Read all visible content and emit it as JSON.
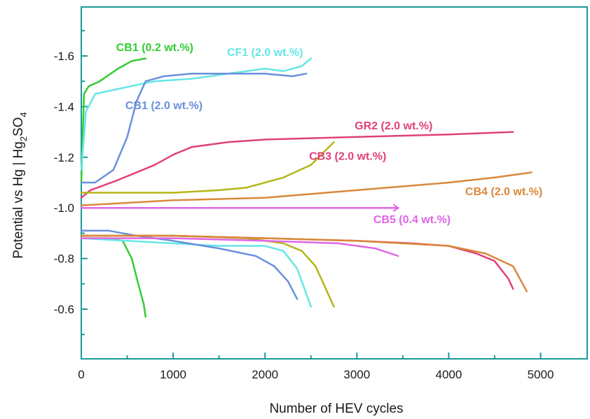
{
  "chart_data": {
    "type": "line",
    "xlabel": "Number of HEV cycles",
    "ylabel": "Potential vs Hg | Hg₂SO₄",
    "ylabel_parts": {
      "main": "Potential vs Hg | Hg",
      "sub1": "2",
      "mid": "SO",
      "sub2": "4"
    },
    "xlim": [
      0,
      5500
    ],
    "ylim": [
      -0.4,
      -1.8
    ],
    "x_ticks": [
      0,
      1000,
      2000,
      3000,
      4000,
      5000
    ],
    "x_tick_labels": [
      "0",
      "1000",
      "2000",
      "3000",
      "4000",
      "5000"
    ],
    "y_ticks": [
      -0.6,
      -0.8,
      -1.0,
      -1.2,
      -1.4,
      -1.6
    ],
    "y_tick_labels": [
      "-0.6",
      "-0.8",
      "-1.0",
      "-1.2",
      "-1.4",
      "-1.6"
    ],
    "axis_color": "#1a9a9a",
    "grid": false,
    "series": [
      {
        "name": "CB1 (0.2 wt.%)",
        "color": "#33cc33",
        "upper": [
          [
            0,
            1.1
          ],
          [
            30,
            1.45
          ],
          [
            80,
            1.48
          ],
          [
            200,
            1.5
          ],
          [
            400,
            1.55
          ],
          [
            550,
            1.58
          ],
          [
            700,
            1.59
          ]
        ],
        "lower": [
          [
            0,
            0.88
          ],
          [
            300,
            0.88
          ],
          [
            450,
            0.87
          ],
          [
            550,
            0.8
          ],
          [
            620,
            0.7
          ],
          [
            680,
            0.62
          ],
          [
            700,
            0.57
          ]
        ]
      },
      {
        "name": "CF1 (2.0 wt.%)",
        "color": "#66e6e6",
        "upper": [
          [
            0,
            1.15
          ],
          [
            50,
            1.38
          ],
          [
            150,
            1.45
          ],
          [
            400,
            1.47
          ],
          [
            800,
            1.5
          ],
          [
            1200,
            1.51
          ],
          [
            1600,
            1.53
          ],
          [
            2000,
            1.55
          ],
          [
            2200,
            1.54
          ],
          [
            2400,
            1.56
          ],
          [
            2500,
            1.59
          ]
        ],
        "lower": [
          [
            0,
            0.88
          ],
          [
            500,
            0.87
          ],
          [
            1000,
            0.86
          ],
          [
            1500,
            0.85
          ],
          [
            2000,
            0.85
          ],
          [
            2200,
            0.83
          ],
          [
            2350,
            0.76
          ],
          [
            2450,
            0.66
          ],
          [
            2500,
            0.61
          ]
        ]
      },
      {
        "name": "CB1 (2.0 wt.%)",
        "color": "#6a90dd",
        "upper": [
          [
            0,
            1.1
          ],
          [
            150,
            1.1
          ],
          [
            350,
            1.15
          ],
          [
            500,
            1.28
          ],
          [
            600,
            1.42
          ],
          [
            700,
            1.5
          ],
          [
            900,
            1.52
          ],
          [
            1200,
            1.53
          ],
          [
            1600,
            1.53
          ],
          [
            2000,
            1.53
          ],
          [
            2300,
            1.52
          ],
          [
            2450,
            1.53
          ]
        ],
        "lower": [
          [
            0,
            0.91
          ],
          [
            300,
            0.91
          ],
          [
            600,
            0.89
          ],
          [
            1000,
            0.87
          ],
          [
            1500,
            0.84
          ],
          [
            1900,
            0.81
          ],
          [
            2100,
            0.77
          ],
          [
            2250,
            0.71
          ],
          [
            2350,
            0.64
          ]
        ]
      },
      {
        "name": "GR2 (2.0 wt.%)",
        "color": "#e0407a",
        "upper": [
          [
            0,
            1.04
          ],
          [
            100,
            1.07
          ],
          [
            400,
            1.11
          ],
          [
            800,
            1.17
          ],
          [
            1000,
            1.21
          ],
          [
            1200,
            1.24
          ],
          [
            1600,
            1.26
          ],
          [
            2000,
            1.27
          ],
          [
            3000,
            1.28
          ],
          [
            4000,
            1.29
          ],
          [
            4700,
            1.3
          ]
        ],
        "lower": [
          [
            0,
            0.89
          ],
          [
            1000,
            0.89
          ],
          [
            2000,
            0.88
          ],
          [
            3000,
            0.87
          ],
          [
            3600,
            0.86
          ],
          [
            4000,
            0.85
          ],
          [
            4300,
            0.82
          ],
          [
            4500,
            0.79
          ],
          [
            4650,
            0.72
          ],
          [
            4700,
            0.68
          ]
        ]
      },
      {
        "name": "CB3 (2.0 wt.%)",
        "color": "#b5b51a",
        "upper": [
          [
            0,
            1.06
          ],
          [
            500,
            1.06
          ],
          [
            1000,
            1.06
          ],
          [
            1500,
            1.07
          ],
          [
            1800,
            1.08
          ],
          [
            2200,
            1.12
          ],
          [
            2500,
            1.17
          ],
          [
            2750,
            1.26
          ]
        ],
        "lower": [
          [
            0,
            0.89
          ],
          [
            1000,
            0.89
          ],
          [
            1800,
            0.88
          ],
          [
            2200,
            0.86
          ],
          [
            2400,
            0.83
          ],
          [
            2550,
            0.77
          ],
          [
            2650,
            0.69
          ],
          [
            2750,
            0.61
          ]
        ]
      },
      {
        "name": "CB4 (2.0 wt.%)",
        "color": "#d9883a",
        "upper": [
          [
            0,
            1.01
          ],
          [
            500,
            1.02
          ],
          [
            1000,
            1.03
          ],
          [
            2000,
            1.04
          ],
          [
            3000,
            1.07
          ],
          [
            4000,
            1.1
          ],
          [
            4500,
            1.12
          ],
          [
            4900,
            1.14
          ]
        ],
        "lower": [
          [
            0,
            0.89
          ],
          [
            1000,
            0.89
          ],
          [
            2000,
            0.88
          ],
          [
            3000,
            0.87
          ],
          [
            4000,
            0.85
          ],
          [
            4400,
            0.82
          ],
          [
            4700,
            0.77
          ],
          [
            4850,
            0.67
          ]
        ]
      },
      {
        "name": "CB5 (0.4 wt.%)",
        "color": "#e066e6",
        "upper": [
          [
            0,
            1.0
          ],
          [
            1000,
            1.0
          ],
          [
            2000,
            1.0
          ],
          [
            3000,
            1.0
          ],
          [
            3450,
            1.0
          ]
        ],
        "lower": [
          [
            0,
            0.88
          ],
          [
            1000,
            0.88
          ],
          [
            2000,
            0.87
          ],
          [
            2800,
            0.86
          ],
          [
            3200,
            0.84
          ],
          [
            3450,
            0.81
          ]
        ]
      }
    ],
    "labels": [
      {
        "text": "CB1 (0.2 wt.%)",
        "color": "#33cc33",
        "x": 800,
        "y": 1.62
      },
      {
        "text": "CF1 (2.0 wt.%)",
        "color": "#66e6e6",
        "x": 2000,
        "y": 1.6
      },
      {
        "text": "CB1 (2.0 wt.%)",
        "color": "#6a90dd",
        "x": 900,
        "y": 1.39
      },
      {
        "text": "GR2 (2.0 wt.%)",
        "color": "#e0407a",
        "x": 3400,
        "y": 1.31
      },
      {
        "text": "CB3 (2.0 wt.%)",
        "color": "#e0407a",
        "x": 2900,
        "y": 1.19
      },
      {
        "text": "CB4 (2.0 wt.%)",
        "color": "#d9883a",
        "x": 4600,
        "y": 1.05
      },
      {
        "text": "CB5 (0.4 wt.%)",
        "color": "#e066e6",
        "x": 3600,
        "y": 0.94
      }
    ]
  }
}
